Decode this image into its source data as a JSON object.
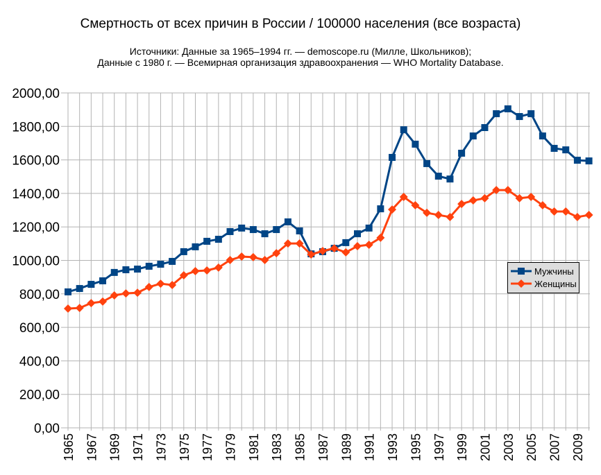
{
  "chart_data": {
    "type": "line",
    "title": "Смертность от всех причин в России / 100000 населения (все возраста)",
    "subtitle_lines": [
      "Источники: Данные за 1965–1994 гг. — demoscope.ru (Милле, Школьников);",
      "Данные с 1980 г. — Всемирная организация здравоохранения — WHO Mortality Database."
    ],
    "xlabel": "",
    "ylabel": "",
    "ylim": [
      0,
      2000
    ],
    "yticks": [
      "0,00",
      "200,00",
      "400,00",
      "600,00",
      "800,00",
      "1000,00",
      "1200,00",
      "1400,00",
      "1600,00",
      "1800,00",
      "2000,00"
    ],
    "xticks": [
      "1965",
      "1967",
      "1969",
      "1971",
      "1973",
      "1975",
      "1977",
      "1979",
      "1981",
      "1983",
      "1985",
      "1987",
      "1989",
      "1991",
      "1993",
      "1995",
      "1997",
      "1999",
      "2001",
      "2003",
      "2005",
      "2007",
      "2009"
    ],
    "grid": true,
    "legend_position": "right",
    "x": [
      1965,
      1966,
      1967,
      1968,
      1969,
      1970,
      1971,
      1972,
      1973,
      1974,
      1975,
      1976,
      1977,
      1978,
      1979,
      1980,
      1981,
      1982,
      1983,
      1984,
      1985,
      1986,
      1987,
      1988,
      1989,
      1990,
      1991,
      1992,
      1993,
      1994,
      1995,
      1996,
      1997,
      1998,
      1999,
      2000,
      2001,
      2002,
      2003,
      2004,
      2005,
      2006,
      2007,
      2008,
      2009,
      2010
    ],
    "series": [
      {
        "name": "Мужчины",
        "color": "#004586",
        "marker": "square",
        "values": [
          812,
          832,
          857,
          878,
          928,
          944,
          948,
          965,
          977,
          994,
          1052,
          1081,
          1114,
          1126,
          1172,
          1193,
          1184,
          1159,
          1184,
          1230,
          1176,
          1039,
          1052,
          1072,
          1106,
          1159,
          1193,
          1308,
          1615,
          1780,
          1694,
          1578,
          1503,
          1486,
          1640,
          1743,
          1793,
          1876,
          1905,
          1859,
          1876,
          1743,
          1669,
          1660,
          1598,
          1594
        ]
      },
      {
        "name": "Женщины",
        "color": "#ff420e",
        "marker": "diamond",
        "values": [
          712,
          716,
          745,
          754,
          791,
          803,
          807,
          841,
          861,
          853,
          911,
          936,
          940,
          957,
          1002,
          1023,
          1019,
          1002,
          1043,
          1101,
          1101,
          1035,
          1056,
          1072,
          1048,
          1085,
          1093,
          1135,
          1304,
          1379,
          1329,
          1284,
          1271,
          1259,
          1337,
          1358,
          1371,
          1420,
          1420,
          1371,
          1379,
          1329,
          1292,
          1292,
          1259,
          1271
        ]
      }
    ]
  }
}
